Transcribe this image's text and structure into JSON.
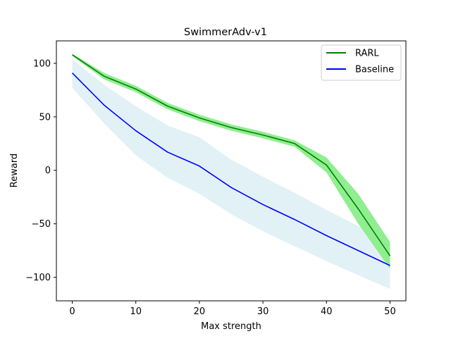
{
  "chart_data": {
    "type": "line",
    "title": "SwimmerAdv-v1",
    "xlabel": "Max strength",
    "ylabel": "Reward",
    "xlim": [
      -2.5,
      52.5
    ],
    "ylim": [
      -122,
      121
    ],
    "x_ticks": [
      0,
      10,
      20,
      30,
      40,
      50
    ],
    "y_ticks": [
      100,
      50,
      0,
      -50,
      -100
    ],
    "x_tick_labels": [
      "0",
      "10",
      "20",
      "30",
      "40",
      "50"
    ],
    "y_tick_labels": [
      "100",
      "50",
      "0",
      "−50",
      "−100"
    ],
    "grid": false,
    "legend_position": "top-right",
    "x": [
      0,
      5,
      10,
      15,
      20,
      25,
      30,
      35,
      40,
      45,
      50
    ],
    "series": [
      {
        "name": "RARL",
        "color": "#008000",
        "band_color": "#90ee90",
        "values": [
          108,
          88,
          76,
          60,
          49,
          40,
          33,
          25,
          5,
          -36,
          -80
        ],
        "upper": [
          109,
          91,
          79,
          63,
          52,
          43,
          36,
          28,
          12,
          -22,
          -67
        ],
        "lower": [
          107,
          85,
          73,
          57,
          46,
          37,
          30,
          22,
          -2,
          -50,
          -92
        ]
      },
      {
        "name": "Baseline",
        "color": "#0000ff",
        "band_color": "#add8e6",
        "values": [
          91,
          61,
          37,
          17,
          4,
          -16,
          -32,
          -46,
          -61,
          -75,
          -89
        ],
        "upper": [
          104,
          80,
          60,
          42,
          31,
          10,
          -6,
          -21,
          -37,
          -52,
          -67
        ],
        "lower": [
          77,
          44,
          14,
          -7,
          -22,
          -41,
          -57,
          -71,
          -85,
          -98,
          -111
        ]
      }
    ]
  }
}
